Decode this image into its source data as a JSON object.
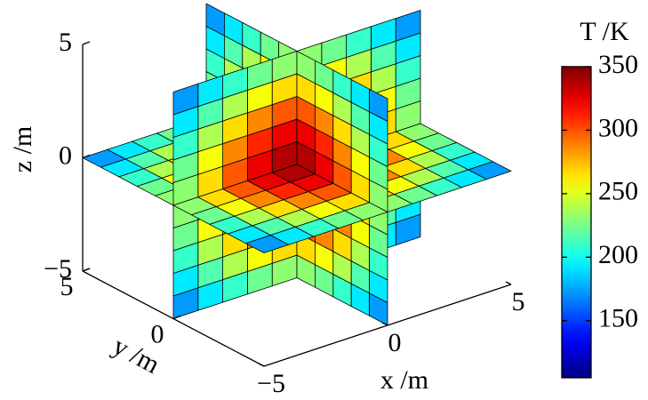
{
  "chart_data": {
    "type": "slice3d",
    "colorbar_label": "T /K",
    "xlabel": "x /m",
    "ylabel": "y /m",
    "zlabel": "z /m",
    "xlim": [
      -5,
      5
    ],
    "ylim": [
      -5,
      5
    ],
    "zlim": [
      -5,
      5
    ],
    "xticks": [
      {
        "value": -5,
        "label": "−5"
      },
      0,
      5
    ],
    "yticks": [
      0,
      5
    ],
    "zticks": [
      {
        "value": -5,
        "label": "−5"
      },
      0,
      5
    ],
    "slices": [
      {
        "axis": "x",
        "at": 0
      },
      {
        "axis": "y",
        "at": 0
      },
      {
        "axis": "z",
        "at": 0
      }
    ],
    "grid": [
      -5,
      -4,
      -3,
      -2,
      -1,
      0,
      1,
      2,
      3,
      4,
      5
    ],
    "values": [
      [
        155,
        172,
        188,
        202,
        212,
        215,
        212,
        202,
        188,
        172,
        155
      ],
      [
        172,
        193,
        215,
        233,
        246,
        251,
        246,
        233,
        215,
        193,
        172
      ],
      [
        188,
        215,
        242,
        265,
        281,
        286,
        281,
        265,
        242,
        215,
        188
      ],
      [
        202,
        233,
        265,
        292,
        310,
        317,
        310,
        292,
        265,
        233,
        202
      ],
      [
        212,
        246,
        281,
        310,
        330,
        338,
        330,
        310,
        281,
        246,
        212
      ],
      [
        215,
        251,
        286,
        317,
        338,
        345,
        338,
        317,
        286,
        251,
        215
      ],
      [
        212,
        246,
        281,
        310,
        330,
        338,
        330,
        310,
        281,
        246,
        212
      ],
      [
        202,
        233,
        265,
        292,
        310,
        317,
        310,
        292,
        265,
        233,
        202
      ],
      [
        188,
        215,
        242,
        265,
        281,
        286,
        281,
        265,
        242,
        215,
        188
      ],
      [
        172,
        193,
        215,
        233,
        246,
        251,
        246,
        233,
        215,
        193,
        172
      ],
      [
        155,
        172,
        188,
        202,
        212,
        215,
        212,
        202,
        188,
        172,
        155
      ]
    ],
    "colormap": "jet",
    "clim": [
      105,
      350
    ],
    "cticks": [
      150,
      200,
      250,
      300,
      350
    ]
  }
}
